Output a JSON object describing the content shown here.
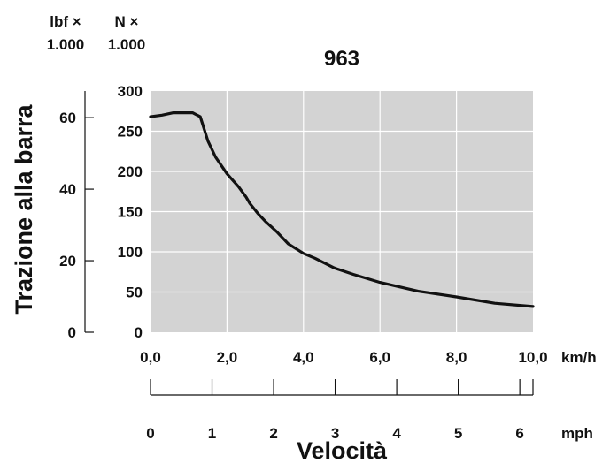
{
  "chart_data": {
    "type": "line",
    "title": "963",
    "ylabel": "Trazione alla barra",
    "xlabel": "Velocità",
    "grid": true,
    "x_unit_km": "km/h",
    "x_unit_mph": "mph",
    "y_unit_lbf": "lbf ×",
    "y_unit_N": "N ×",
    "y_scale_lbf": "1.000",
    "y_scale_N": "1.000",
    "xlim_kmh": [
      0,
      10
    ],
    "ylim_kN": [
      0,
      300
    ],
    "ylim_klbf": [
      0,
      67.44
    ],
    "x_ticks_kmh": [
      "0,0",
      "2,0",
      "4,0",
      "6,0",
      "8,0",
      "10,0"
    ],
    "x_ticks_mph": [
      "0",
      "1",
      "2",
      "3",
      "4",
      "5",
      "6"
    ],
    "y_ticks_N": [
      "0",
      "50",
      "100",
      "150",
      "200",
      "250",
      "300"
    ],
    "y_ticks_lbf": [
      "0",
      "20",
      "40",
      "60"
    ],
    "series": [
      {
        "x_kmh": [
          0,
          0.3,
          0.6,
          0.8,
          1.1,
          1.3,
          1.5,
          1.7,
          2.0,
          2.3,
          2.5,
          2.6,
          2.8,
          3.0,
          3.3,
          3.6,
          4.0,
          4.3,
          4.8,
          5.3,
          6.0,
          7.0,
          8.0,
          9.0,
          10.0
        ],
        "y_kN": [
          268,
          270,
          273,
          273,
          273,
          268,
          238,
          218,
          197,
          181,
          168,
          160,
          148,
          138,
          125,
          110,
          98,
          92,
          80,
          72,
          62,
          51,
          44,
          36,
          32
        ]
      }
    ]
  },
  "colors": {
    "plot_background": "#d3d3d3",
    "grid": "#ffffff",
    "line": "#111111",
    "axis": "#111111"
  }
}
